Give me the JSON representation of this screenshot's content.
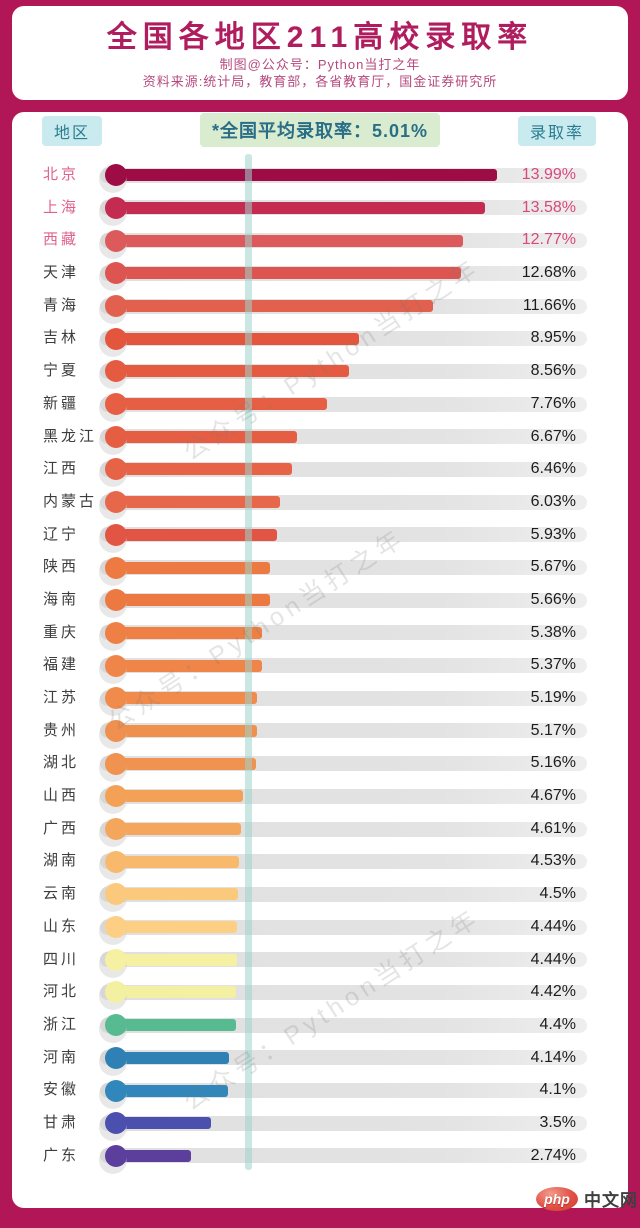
{
  "page": {
    "title": "全国各地区211高校录取率",
    "subtitle1": "制图@公众号：Python当打之年",
    "subtitle2": "资料来源:统计局，教育部，各省教育厅，国金证券研究所",
    "header": {
      "region_label": "地区",
      "average_label": "*全国平均录取率：5.01%",
      "rate_label": "录取率"
    },
    "watermark_text": "公众号：Python当打之年",
    "logo": {
      "badge": "php",
      "suffix": "中文网"
    },
    "colors": {
      "frame": "#b11757",
      "title_text": "#b01d5e",
      "chip_blue_bg": "#c9eaee",
      "chip_blue_text": "#2a7d90",
      "chip_green_bg": "#daeccf",
      "chip_green_text": "#2a6d86",
      "average_line": "#9ed3cc",
      "track": "#e1e1e1",
      "top3_label": "#e0628c",
      "top3_value": "#d8487c"
    }
  },
  "chart_data": {
    "type": "bar",
    "orientation": "horizontal",
    "title": "全国各地区211高校录取率",
    "unit": "%",
    "xlim": [
      0,
      17.3
    ],
    "grid": false,
    "legend": "none",
    "average_line": {
      "label": "*全国平均录取率：5.01%",
      "value": 5.01
    },
    "categories": [
      "北京",
      "上海",
      "西藏",
      "天津",
      "青海",
      "吉林",
      "宁夏",
      "新疆",
      "黑龙江",
      "江西",
      "内蒙古",
      "辽宁",
      "陕西",
      "海南",
      "重庆",
      "福建",
      "江苏",
      "贵州",
      "湖北",
      "山西",
      "广西",
      "湖南",
      "云南",
      "山东",
      "四川",
      "河北",
      "浙江",
      "河南",
      "安徽",
      "甘肃",
      "广东"
    ],
    "values": [
      13.99,
      13.58,
      12.77,
      12.68,
      11.66,
      8.95,
      8.56,
      7.76,
      6.67,
      6.46,
      6.03,
      5.93,
      5.67,
      5.66,
      5.38,
      5.37,
      5.19,
      5.17,
      5.16,
      4.67,
      4.61,
      4.53,
      4.5,
      4.44,
      4.44,
      4.42,
      4.4,
      4.14,
      4.1,
      3.5,
      2.74
    ],
    "labels": [
      "13.99%",
      "13.58%",
      "12.77%",
      "12.68%",
      "11.66%",
      "8.95%",
      "8.56%",
      "7.76%",
      "6.67%",
      "6.46%",
      "6.03%",
      "5.93%",
      "5.67%",
      "5.66%",
      "5.38%",
      "5.37%",
      "5.19%",
      "5.17%",
      "5.16%",
      "4.67%",
      "4.61%",
      "4.53%",
      "4.5%",
      "4.44%",
      "4.44%",
      "4.42%",
      "4.4%",
      "4.14%",
      "4.1%",
      "3.5%",
      "2.74%"
    ],
    "bar_colors": [
      "#9E0C46",
      "#C42B51",
      "#DC5A5C",
      "#DD5551",
      "#E2604E",
      "#E4553E",
      "#E55B41",
      "#E65F44",
      "#E55E44",
      "#E66348",
      "#E7674B",
      "#E25545",
      "#ED7A42",
      "#ED7942",
      "#EE8045",
      "#EF8548",
      "#F08B4C",
      "#F0904E",
      "#F09250",
      "#F4A158",
      "#F5A65D",
      "#F8B96D",
      "#FBC97C",
      "#FCCF84",
      "#F6F0A2",
      "#F4F0A2",
      "#58BA90",
      "#2E80B5",
      "#3187BB",
      "#4B50AE",
      "#5C3E9D"
    ],
    "highlight_top_n": 3
  }
}
